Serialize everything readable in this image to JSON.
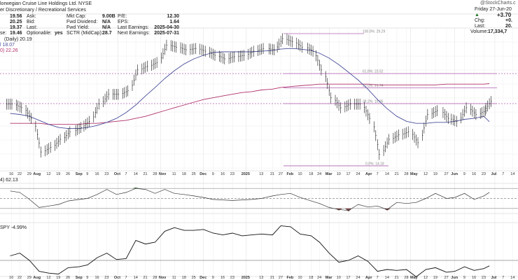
{
  "header": {
    "title": "lorwegian Cruise Line Holdings Ltd. NYSE",
    "sector": "er Discretionary / Recreational Services",
    "watermark": "@StockCharts.c",
    "quote": [
      [
        "",
        "19.56",
        "Ask:",
        ""
      ],
      [
        "",
        "20.25",
        "Bid:",
        ""
      ],
      [
        "",
        "19.37",
        "Last:",
        ""
      ],
      [
        "se:",
        "19.46",
        "Optionable:",
        "yes"
      ]
    ],
    "fund": [
      [
        "Mkt Cap:",
        "9.00B"
      ],
      [
        "Fwd Dividend:",
        "N/A"
      ],
      [
        "Fwd Yield:",
        "N/A"
      ],
      [
        "SCTR (MidCap):",
        "28.7"
      ]
    ],
    "fund2": [
      [
        "P/E:",
        "12.30"
      ],
      [
        "EPS:",
        "1.64"
      ],
      [
        "Last Earnings:",
        "2025-04-30"
      ],
      [
        "Next Earnings:",
        "2025-07-31"
      ]
    ],
    "right": {
      "date": "Friday 27-Jun-20",
      "change_big": "+3.70",
      "chg_label": "Chg:",
      "chg": "+0.",
      "last_label": "Last:",
      "last": "20.",
      "volume_label": "Volume:",
      "volume": "17,334,7"
    }
  },
  "chart_data": {
    "type": "line",
    "price_scale": "log",
    "ylim": [
      13.8,
      30.2
    ],
    "legend": {
      "price": "(Daily) 20.19",
      "ma_short": "l 18.07",
      "ma_long": "0) 22.26",
      "rsi": "4) 62.13",
      "rel": "SPY -4.99%"
    },
    "colors": {
      "ma_short": "#4a4f9a",
      "ma_long": "#b0306a",
      "fib": "#b060b0",
      "rsi_over": "#4d6b4d",
      "rsi_under": "#7a4a4a"
    },
    "fib": [
      {
        "label": "100.0%: 29.29",
        "v": 29.29
      },
      {
        "label": "61.8%: 23.52",
        "v": 23.52
      },
      {
        "label": "50.0%: 21.74",
        "v": 21.74
      },
      {
        "label": "38.2%: 19.95",
        "v": 19.95
      },
      {
        "label": "0.0%: 14.18",
        "v": 14.18
      }
    ],
    "x": [
      "2024-07-15",
      "2024-07-22",
      "2024-07-29",
      "2024-08-05",
      "2024-08-12",
      "2024-08-19",
      "2024-08-26",
      "2024-09-03",
      "2024-09-09",
      "2024-09-16",
      "2024-09-23",
      "2024-09-30",
      "2024-10-07",
      "2024-10-14",
      "2024-10-21",
      "2024-10-28",
      "2024-11-04",
      "2024-11-11",
      "2024-11-18",
      "2024-11-25",
      "2024-12-02",
      "2024-12-09",
      "2024-12-16",
      "2024-12-23",
      "2024-12-30",
      "2025-01-06",
      "2025-01-13",
      "2025-01-21",
      "2025-01-27",
      "2025-02-03",
      "2025-02-10",
      "2025-02-18",
      "2025-02-24",
      "2025-03-03",
      "2025-03-10",
      "2025-03-17",
      "2025-03-24",
      "2025-03-31",
      "2025-04-07",
      "2025-04-14",
      "2025-04-21",
      "2025-04-28",
      "2025-05-05",
      "2025-05-12",
      "2025-05-19",
      "2025-05-27",
      "2025-06-02",
      "2025-06-09",
      "2025-06-16",
      "2025-06-23",
      "2025-06-27"
    ],
    "close": [
      19.9,
      19.5,
      18.4,
      15.3,
      15.7,
      16.4,
      17.1,
      17.5,
      18.1,
      19.9,
      21.0,
      21.0,
      21.4,
      24.0,
      24.5,
      25.0,
      27.5,
      27.2,
      26.8,
      27.0,
      26.6,
      26.0,
      25.5,
      25.8,
      26.0,
      26.6,
      27.0,
      26.8,
      28.5,
      28.0,
      27.2,
      26.6,
      24.0,
      20.6,
      19.5,
      19.9,
      19.9,
      18.4,
      15.1,
      16.4,
      16.8,
      17.1,
      16.1,
      18.8,
      19.2,
      18.4,
      18.1,
      19.5,
      18.8,
      19.2,
      20.19
    ],
    "ma_short": [
      18.9,
      18.8,
      18.6,
      18.2,
      17.8,
      17.5,
      17.4,
      17.4,
      17.5,
      17.7,
      18.0,
      18.4,
      19.0,
      19.8,
      20.8,
      21.8,
      22.9,
      23.9,
      24.8,
      25.5,
      26.0,
      26.4,
      26.5,
      26.5,
      26.5,
      26.5,
      26.6,
      26.7,
      26.9,
      27.0,
      26.9,
      26.7,
      26.3,
      25.6,
      24.7,
      23.7,
      22.7,
      21.6,
      20.4,
      19.4,
      18.6,
      18.1,
      17.9,
      17.9,
      18.0,
      18.0,
      18.1,
      18.3,
      18.4,
      18.6,
      18.07
    ],
    "ma_long": [
      17.9,
      17.9,
      17.9,
      17.9,
      17.8,
      17.8,
      17.8,
      17.8,
      17.9,
      17.9,
      18.0,
      18.1,
      18.2,
      18.4,
      18.6,
      18.9,
      19.2,
      19.5,
      19.8,
      20.1,
      20.4,
      20.6,
      20.8,
      21.0,
      21.2,
      21.3,
      21.5,
      21.6,
      21.8,
      21.9,
      22.0,
      22.1,
      22.2,
      22.2,
      22.2,
      22.2,
      22.2,
      22.2,
      22.1,
      22.1,
      22.1,
      22.1,
      22.1,
      22.1,
      22.1,
      22.2,
      22.2,
      22.2,
      22.2,
      22.2,
      22.26
    ],
    "rsi": [
      65,
      62,
      48,
      32,
      35,
      38,
      45,
      48,
      50,
      58,
      68,
      58,
      62,
      70,
      68,
      60,
      68,
      60,
      58,
      55,
      52,
      48,
      47,
      46,
      47,
      48,
      50,
      55,
      58,
      60,
      52,
      45,
      40,
      32,
      28,
      26,
      38,
      33,
      35,
      28,
      42,
      40,
      42,
      50,
      60,
      50,
      52,
      60,
      48,
      55,
      62.13
    ],
    "rel": [
      5,
      8,
      0,
      -12,
      -14,
      -15,
      -8,
      -7,
      -5,
      3,
      8,
      1,
      2,
      22,
      18,
      20,
      32,
      36,
      33,
      33,
      34,
      30,
      28,
      30,
      27,
      28,
      29,
      28,
      38,
      37,
      29,
      27,
      20,
      8,
      -2,
      0,
      5,
      -1,
      -12,
      -10,
      -11,
      -10,
      -18,
      -10,
      -8,
      -13,
      -12,
      -7,
      -11,
      -9,
      -6
    ],
    "ticks": [
      [
        "2024-07-16",
        "16",
        0
      ],
      [
        "2024-07-22",
        "22",
        0
      ],
      [
        "2024-07-29",
        "29",
        0
      ],
      [
        "2024-08-01",
        "Aug",
        1
      ],
      [
        "2024-08-12",
        "12",
        0
      ],
      [
        "2024-08-19",
        "19",
        0
      ],
      [
        "2024-08-26",
        "26",
        0
      ],
      [
        "2024-09-03",
        "Sep",
        1
      ],
      [
        "2024-09-09",
        "9",
        0
      ],
      [
        "2024-09-16",
        "16",
        0
      ],
      [
        "2024-09-23",
        "23",
        0
      ],
      [
        "2024-10-01",
        "Oct",
        1
      ],
      [
        "2024-10-07",
        "7",
        0
      ],
      [
        "2024-10-14",
        "14",
        0
      ],
      [
        "2024-10-21",
        "21",
        0
      ],
      [
        "2024-10-28",
        "28",
        0
      ],
      [
        "2024-11-01",
        "Nov",
        1
      ],
      [
        "2024-11-11",
        "11",
        0
      ],
      [
        "2024-11-18",
        "18",
        0
      ],
      [
        "2024-11-25",
        "25",
        0
      ],
      [
        "2024-12-02",
        "Dec",
        1
      ],
      [
        "2024-12-09",
        "9",
        0
      ],
      [
        "2024-12-16",
        "16",
        0
      ],
      [
        "2024-12-23",
        "23",
        0
      ],
      [
        "2025-01-02",
        "2025",
        1
      ],
      [
        "2025-01-13",
        "13",
        0
      ],
      [
        "2025-01-21",
        "21",
        0
      ],
      [
        "2025-01-27",
        "27",
        0
      ],
      [
        "2025-02-03",
        "Feb",
        1
      ],
      [
        "2025-02-10",
        "10",
        0
      ],
      [
        "2025-02-18",
        "18",
        0
      ],
      [
        "2025-02-24",
        "24",
        0
      ],
      [
        "2025-03-03",
        "Mar",
        1
      ],
      [
        "2025-03-10",
        "10",
        0
      ],
      [
        "2025-03-17",
        "17",
        0
      ],
      [
        "2025-03-24",
        "24",
        0
      ],
      [
        "2025-04-01",
        "Apr",
        1
      ],
      [
        "2025-04-07",
        "7",
        0
      ],
      [
        "2025-04-14",
        "14",
        0
      ],
      [
        "2025-04-21",
        "21",
        0
      ],
      [
        "2025-04-28",
        "28",
        0
      ],
      [
        "2025-05-01",
        "May",
        1
      ],
      [
        "2025-05-12",
        "12",
        0
      ],
      [
        "2025-05-19",
        "19",
        0
      ],
      [
        "2025-05-27",
        "27",
        0
      ],
      [
        "2025-06-02",
        "Jun",
        1
      ],
      [
        "2025-06-09",
        "9",
        0
      ],
      [
        "2025-06-16",
        "16",
        0
      ],
      [
        "2025-06-23",
        "23",
        0
      ],
      [
        "2025-07-01",
        "Jul",
        1
      ],
      [
        "2025-07-07",
        "7",
        0
      ],
      [
        "2025-07-14",
        "14",
        0
      ]
    ]
  }
}
